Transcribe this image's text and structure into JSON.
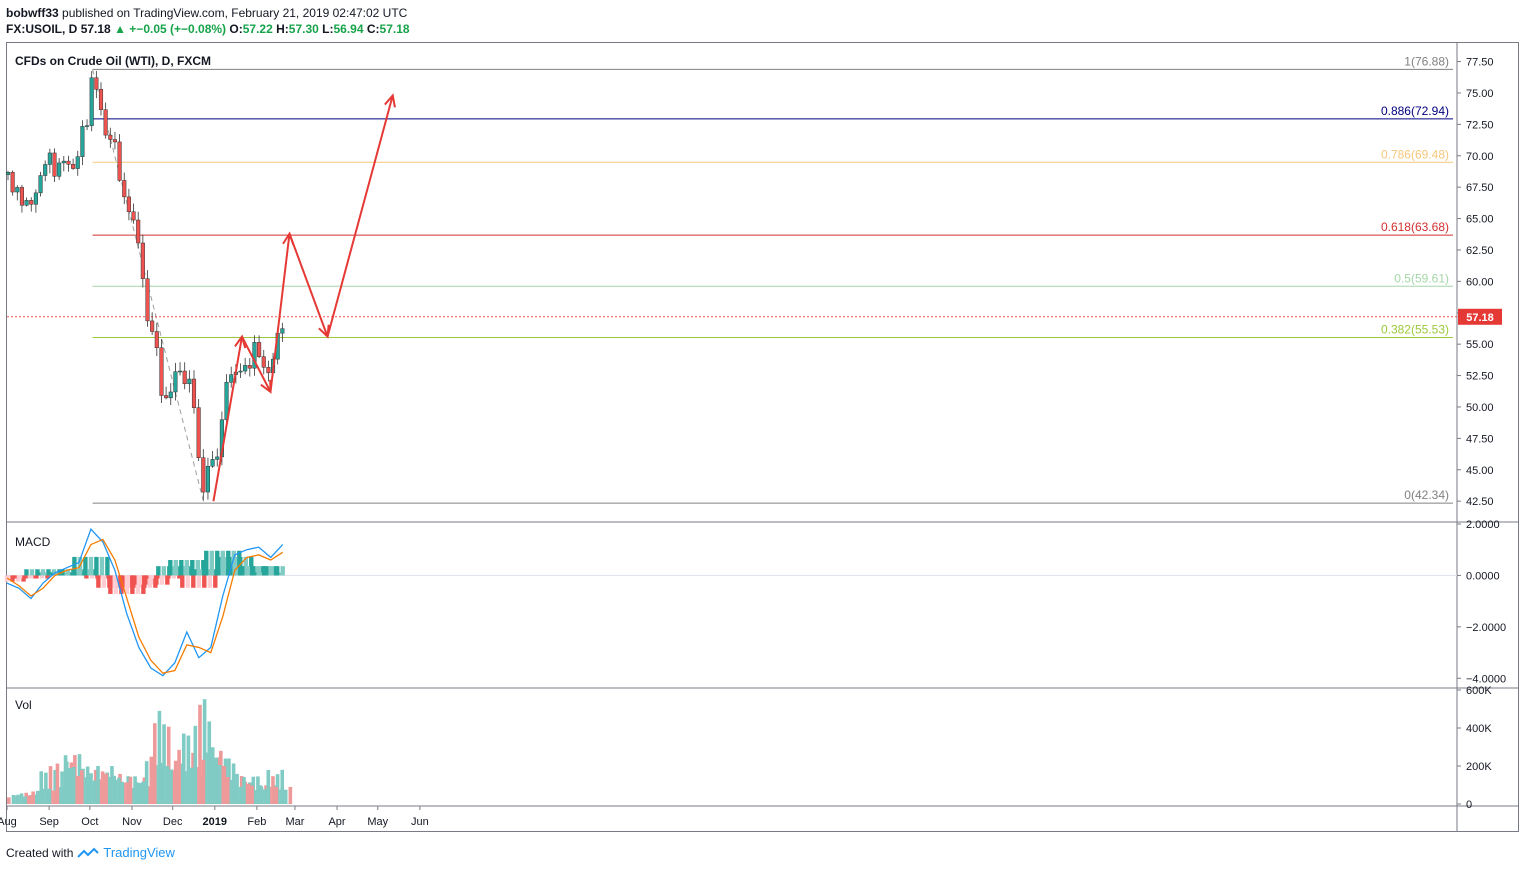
{
  "header": {
    "author": "bobwff33",
    "published_text": "published on TradingView.com, February 21, 2019 02:47:02 UTC",
    "symbol_line": "FX:USOIL, D",
    "last": "57.18",
    "change": "+−0.05 (+−0.08%)",
    "open_label": "O:",
    "open": "57.22",
    "high_label": "H:",
    "high": "57.30",
    "low_label": "L:",
    "low": "56.94",
    "close_label": "C:",
    "close": "57.18"
  },
  "colors": {
    "up": "#26a69a",
    "down": "#ef5350",
    "grid": "#e0e3eb",
    "fib_1": "#808080",
    "fib_886": "#000080",
    "fib_786": "#f5c77a",
    "fib_618": "#d32f2f",
    "fib_5": "#a5d6a7",
    "fib_382": "#9cc93b",
    "fib_0": "#808080",
    "macd_line": "#2196f3",
    "signal_line": "#f57c00",
    "arrow": "#e53935"
  },
  "footer": {
    "created_with": "Created with",
    "brand": "TradingView"
  },
  "chart_data": [
    {
      "type": "candlestick",
      "title": "CFDs on Crude Oil (WTI), D, FXCM",
      "ylim": [
        41,
        78.5
      ],
      "y_ticks": [
        "77.50",
        "75.00",
        "72.50",
        "70.00",
        "67.50",
        "65.00",
        "62.50",
        "60.00",
        "57.50",
        "55.00",
        "52.50",
        "50.00",
        "47.50",
        "45.00",
        "42.50"
      ],
      "x_labels": [
        "Aug",
        "Sep",
        "Oct",
        "Nov",
        "Dec",
        "2019",
        "Feb",
        "Mar",
        "Apr",
        "May",
        "Jun"
      ],
      "last_price_label": "57.18",
      "last_price": 57.18,
      "fib_levels": [
        {
          "label": "1(76.88)",
          "value": 76.88,
          "key": "fib_1"
        },
        {
          "label": "0.886(72.94)",
          "value": 72.94,
          "key": "fib_886"
        },
        {
          "label": "0.786(69.48)",
          "value": 69.48,
          "key": "fib_786"
        },
        {
          "label": "0.618(63.68)",
          "value": 63.68,
          "key": "fib_618"
        },
        {
          "label": "0.5(59.61)",
          "value": 59.61,
          "key": "fib_5"
        },
        {
          "label": "0.382(55.53)",
          "value": 55.53,
          "key": "fib_382"
        },
        {
          "label": "0(42.34)",
          "value": 42.34,
          "key": "fib_0"
        }
      ],
      "price_path": [
        [
          "2018-08-01",
          68.5
        ],
        [
          "2018-08-08",
          67.3
        ],
        [
          "2018-08-16",
          65.6
        ],
        [
          "2018-08-23",
          67.5
        ],
        [
          "2018-08-30",
          69.8
        ],
        [
          "2018-09-06",
          68.8
        ],
        [
          "2018-09-12",
          70.0
        ],
        [
          "2018-09-18",
          68.2
        ],
        [
          "2018-09-25",
          72.0
        ],
        [
          "2018-10-01",
          73.5
        ],
        [
          "2018-10-03",
          76.4
        ],
        [
          "2018-10-08",
          74.6
        ],
        [
          "2018-10-12",
          71.8
        ],
        [
          "2018-10-17",
          71.6
        ],
        [
          "2018-10-22",
          69.0
        ],
        [
          "2018-10-26",
          66.5
        ],
        [
          "2018-10-31",
          66.0
        ],
        [
          "2018-11-05",
          63.0
        ],
        [
          "2018-11-09",
          60.5
        ],
        [
          "2018-11-13",
          56.0
        ],
        [
          "2018-11-16",
          56.8
        ],
        [
          "2018-11-20",
          53.5
        ],
        [
          "2018-11-23",
          50.7
        ],
        [
          "2018-11-28",
          50.5
        ],
        [
          "2018-12-03",
          53.3
        ],
        [
          "2018-12-07",
          52.0
        ],
        [
          "2018-12-12",
          52.2
        ],
        [
          "2018-12-17",
          50.5
        ],
        [
          "2018-12-20",
          46.0
        ],
        [
          "2018-12-24",
          42.5
        ],
        [
          "2018-12-26",
          45.3
        ],
        [
          "2018-12-31",
          45.5
        ],
        [
          "2019-01-07",
          48.9
        ],
        [
          "2019-01-10",
          52.5
        ],
        [
          "2019-01-15",
          52.0
        ],
        [
          "2019-01-18",
          53.8
        ],
        [
          "2019-01-23",
          52.8
        ],
        [
          "2019-01-28",
          53.5
        ],
        [
          "2019-02-01",
          55.3
        ],
        [
          "2019-02-07",
          52.8
        ],
        [
          "2019-02-11",
          52.5
        ],
        [
          "2019-02-14",
          54.5
        ],
        [
          "2019-02-18",
          56.0
        ],
        [
          "2019-02-20",
          57.18
        ]
      ],
      "projection_path": [
        [
          "2018-12-31",
          42.5
        ],
        [
          "2019-01-21",
          55.6
        ],
        [
          "2019-01-21",
          55.6
        ],
        [
          "2019-02-11",
          51.2
        ],
        [
          "2019-02-11",
          51.2
        ],
        [
          "2019-02-25",
          63.8
        ],
        [
          "2019-02-25",
          63.8
        ],
        [
          "2019-03-25",
          55.6
        ],
        [
          "2019-03-25",
          55.6
        ],
        [
          "2019-05-12",
          74.8
        ]
      ]
    },
    {
      "type": "line",
      "title": "MACD",
      "ylim": [
        -4.3,
        2.0
      ],
      "y_ticks": [
        "2.0000",
        "0.0000",
        "−2.0000",
        "−4.0000"
      ],
      "series": [
        {
          "name": "MACD",
          "values": [
            -0.3,
            -0.5,
            -0.9,
            -0.3,
            0.1,
            0.3,
            0.5,
            1.8,
            1.3,
            0.2,
            -1.5,
            -2.8,
            -3.6,
            -3.9,
            -3.4,
            -2.2,
            -3.2,
            -2.8,
            -0.8,
            0.8,
            1.0,
            1.1,
            0.7,
            1.2
          ]
        },
        {
          "name": "Signal",
          "values": [
            -0.1,
            -0.4,
            -0.8,
            -0.5,
            0.0,
            0.2,
            0.3,
            1.2,
            1.4,
            0.6,
            -0.9,
            -2.4,
            -3.3,
            -3.8,
            -3.7,
            -2.7,
            -2.8,
            -3.0,
            -1.6,
            0.2,
            0.7,
            0.8,
            0.6,
            0.9
          ]
        }
      ],
      "histogram": [
        -0.2,
        -0.1,
        -0.1,
        0.2,
        0.1,
        0.1,
        0.2,
        0.6,
        -0.1,
        -0.4,
        -0.6,
        -0.4,
        -0.3,
        -0.1,
        0.3,
        0.5,
        -0.4,
        0.2,
        0.8,
        0.6,
        0.3,
        0.3,
        0.1,
        0.3
      ]
    },
    {
      "type": "bar",
      "title": "Vol",
      "ylim": [
        0,
        600000
      ],
      "y_ticks": [
        "600K",
        "400K",
        "200K",
        "0"
      ],
      "values": [
        50000,
        60000,
        50000,
        80000,
        200000,
        90000,
        230000,
        270000,
        200000,
        180000,
        150000,
        200000,
        160000,
        150000,
        120000,
        150000,
        120000,
        250000,
        490000,
        200000,
        230000,
        380000,
        200000,
        560000,
        300000,
        280000,
        240000,
        160000,
        120000,
        150000,
        100000,
        100000,
        180000,
        90000
      ]
    }
  ],
  "price_candles_note": "drawn from price_path"
}
